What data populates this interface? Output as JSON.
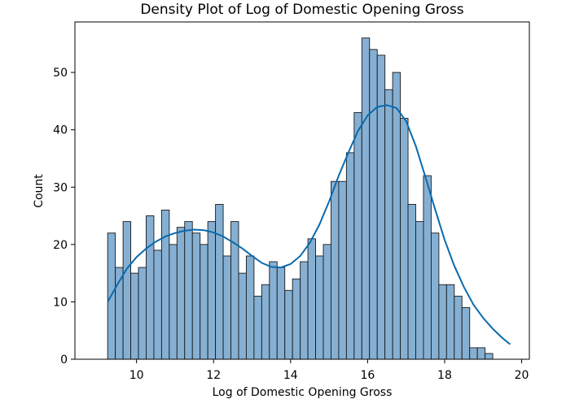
{
  "chart_data": {
    "type": "bar",
    "subtype": "histogram-with-kde",
    "title": "Density Plot of Log of Domestic Opening Gross",
    "xlabel": "Log of Domestic Opening Gross",
    "ylabel": "Count",
    "xlim": [
      8.4,
      20.2
    ],
    "ylim": [
      0,
      58.8
    ],
    "xticks": [
      10,
      12,
      14,
      16,
      18,
      20
    ],
    "yticks": [
      0,
      10,
      20,
      30,
      40,
      50
    ],
    "grid": false,
    "legend": "none",
    "bar_color": "#86b0d3",
    "edge_color": "#1a1a1a",
    "kde_color": "#0a6aae",
    "bins": {
      "start": 9.25,
      "width": 0.2,
      "counts": [
        22,
        16,
        24,
        15,
        16,
        25,
        19,
        26,
        20,
        23,
        24,
        22,
        20,
        24,
        27,
        18,
        24,
        15,
        18,
        11,
        13,
        17,
        16,
        12,
        14,
        17,
        21,
        18,
        20,
        31,
        31,
        36,
        43,
        56,
        54,
        53,
        47,
        50,
        42,
        27,
        24,
        32,
        22,
        13,
        13,
        11,
        9,
        2,
        2,
        1
      ]
    },
    "kde": {
      "x": [
        9.25,
        9.5,
        9.75,
        10.0,
        10.25,
        10.5,
        10.75,
        11.0,
        11.25,
        11.5,
        11.75,
        12.0,
        12.25,
        12.5,
        12.75,
        13.0,
        13.25,
        13.5,
        13.75,
        14.0,
        14.25,
        14.5,
        14.75,
        15.0,
        15.25,
        15.5,
        15.75,
        16.0,
        16.25,
        16.5,
        16.75,
        17.0,
        17.25,
        17.5,
        17.75,
        18.0,
        18.25,
        18.5,
        18.75,
        19.0,
        19.25,
        19.5,
        19.7
      ],
      "y": [
        10.0,
        13.0,
        15.8,
        17.8,
        19.3,
        20.5,
        21.4,
        22.0,
        22.4,
        22.6,
        22.5,
        22.1,
        21.4,
        20.4,
        19.3,
        18.0,
        16.8,
        16.1,
        16.0,
        16.6,
        18.0,
        20.3,
        23.5,
        27.5,
        32.0,
        36.0,
        39.8,
        42.5,
        44.0,
        44.3,
        43.8,
        41.5,
        37.2,
        31.8,
        26.2,
        20.8,
        16.3,
        12.6,
        9.5,
        7.2,
        5.3,
        3.7,
        2.6
      ]
    }
  }
}
